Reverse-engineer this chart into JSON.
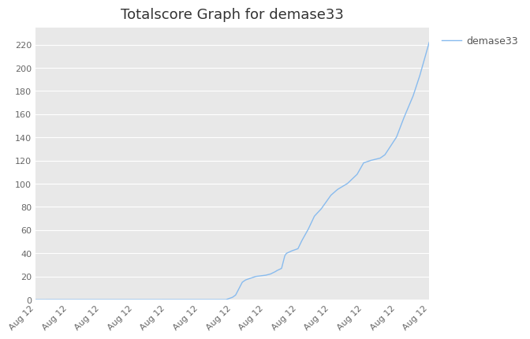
{
  "title": "Totalscore Graph for demase33",
  "legend_label": "demase33",
  "line_color": "#88BBEE",
  "background_color": "#E8E8E8",
  "figure_background": "#FFFFFF",
  "xtick_labels": [
    "Aug 12",
    "Aug 12",
    "Aug 12",
    "Aug 12",
    "Aug 12",
    "Aug 12",
    "Aug 12",
    "Aug 12",
    "Aug 12",
    "Aug 12",
    "Aug 12",
    "Aug 12",
    "Aug 12"
  ],
  "ytick_values": [
    0,
    20,
    40,
    60,
    80,
    100,
    120,
    140,
    160,
    180,
    200,
    220
  ],
  "ylim": [
    0,
    235
  ],
  "xlim": [
    0,
    12
  ],
  "title_fontsize": 13,
  "tick_fontsize": 8,
  "legend_fontsize": 9,
  "grid_color": "#FFFFFF",
  "line_width": 1.0
}
